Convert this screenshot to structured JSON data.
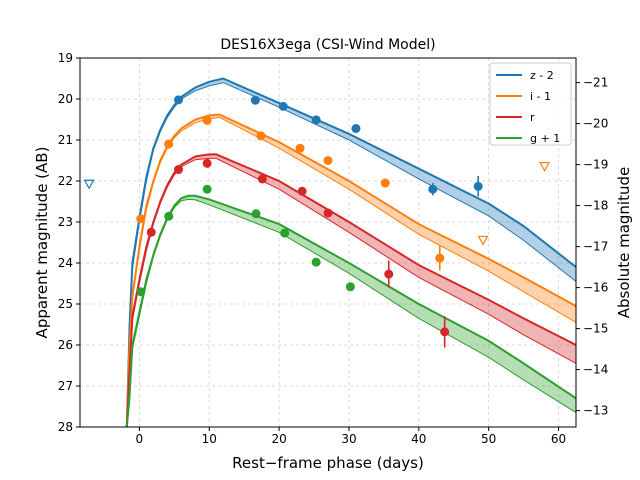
{
  "chart_data": {
    "type": "line",
    "title": "DES16X3ega (CSI-Wind Model)",
    "xlabel": "Rest−frame phase (days)",
    "ylabel": "Apparent magnitude (AB)",
    "ylabel_right": "Absolute magnitude",
    "xlim": [
      -8.5,
      62.5
    ],
    "ylim": [
      28,
      19
    ],
    "ylim_right": [
      -12.6,
      -21.6
    ],
    "x_ticks": [
      0,
      10,
      20,
      30,
      40,
      50,
      60
    ],
    "y_ticks": [
      19,
      20,
      21,
      22,
      23,
      24,
      25,
      26,
      27,
      28
    ],
    "y_ticks_right": [
      -13,
      -14,
      -15,
      -16,
      -17,
      -18,
      -19,
      -20,
      -21
    ],
    "grid": true,
    "legend_position": "top-right",
    "series": [
      {
        "name": "z - 2",
        "color": "#1f77b4",
        "model": {
          "x": [
            -1.8,
            -1.4,
            -1,
            0,
            1,
            2,
            3,
            4,
            5,
            6,
            8,
            10,
            12,
            20,
            30,
            40,
            50,
            55,
            62.5
          ],
          "y": [
            28,
            25.5,
            24.0,
            22.9,
            21.9,
            21.2,
            20.75,
            20.4,
            20.15,
            19.95,
            19.72,
            19.58,
            19.5,
            20.1,
            20.85,
            21.7,
            22.55,
            23.1,
            24.1
          ],
          "y_low": [
            28,
            25.7,
            24.15,
            23.0,
            22.0,
            21.25,
            20.8,
            20.45,
            20.2,
            20.0,
            19.8,
            19.68,
            19.6,
            20.2,
            21.0,
            21.95,
            22.85,
            23.45,
            24.45
          ]
        },
        "points": [
          {
            "x": 5.6,
            "y": 20.02,
            "err": 0.04
          },
          {
            "x": 16.6,
            "y": 20.03,
            "err": 0.04
          },
          {
            "x": 20.6,
            "y": 20.18,
            "err": 0.05
          },
          {
            "x": 25.3,
            "y": 20.51,
            "err": 0.06
          },
          {
            "x": 31.0,
            "y": 20.72,
            "err": 0.07
          },
          {
            "x": 42.0,
            "y": 22.2,
            "err": 0.15
          },
          {
            "x": 48.5,
            "y": 22.13,
            "err": 0.25
          }
        ],
        "upper_limits": [
          {
            "x": -7.2,
            "y": 22.08
          }
        ]
      },
      {
        "name": "i - 1",
        "color": "#ff7f0e",
        "model": {
          "x": [
            -1.8,
            -1.4,
            -1,
            0,
            1,
            2,
            3,
            4,
            5,
            6,
            8,
            10,
            11.5,
            20,
            30,
            40,
            50,
            55,
            62.5
          ],
          "y": [
            28,
            26.0,
            24.8,
            23.6,
            22.6,
            22.0,
            21.5,
            21.15,
            20.9,
            20.72,
            20.5,
            20.4,
            20.38,
            21.05,
            22.0,
            23.05,
            23.9,
            24.35,
            25.05
          ],
          "y_low": [
            28,
            26.2,
            24.9,
            23.7,
            22.7,
            22.05,
            21.55,
            21.2,
            20.95,
            20.78,
            20.58,
            20.48,
            20.45,
            21.2,
            22.2,
            23.3,
            24.2,
            24.7,
            25.45
          ]
        },
        "points": [
          {
            "x": 0.2,
            "y": 22.92,
            "err": 0.05
          },
          {
            "x": 4.2,
            "y": 21.1,
            "err": 0.04
          },
          {
            "x": 9.7,
            "y": 20.52,
            "err": 0.04
          },
          {
            "x": 17.4,
            "y": 20.9,
            "err": 0.04
          },
          {
            "x": 23.0,
            "y": 21.2,
            "err": 0.05
          },
          {
            "x": 27.0,
            "y": 21.5,
            "err": 0.05
          },
          {
            "x": 35.2,
            "y": 22.05,
            "err": 0.07
          },
          {
            "x": 43.0,
            "y": 23.88,
            "err": 0.3
          }
        ],
        "upper_limits": [
          {
            "x": 49.2,
            "y": 23.45
          },
          {
            "x": 58.0,
            "y": 21.65
          }
        ]
      },
      {
        "name": "r",
        "color": "#d62728",
        "model": {
          "x": [
            -1.8,
            -1.4,
            -1,
            0,
            1,
            2,
            3,
            4,
            5,
            6,
            8,
            10,
            11,
            20,
            30,
            40,
            50,
            55,
            62.5
          ],
          "y": [
            28,
            26.6,
            25.3,
            24.4,
            23.6,
            23.0,
            22.5,
            22.1,
            21.8,
            21.6,
            21.4,
            21.35,
            21.35,
            22.0,
            23.0,
            24.05,
            24.9,
            25.35,
            26.0
          ],
          "y_low": [
            28,
            26.8,
            25.4,
            24.5,
            23.7,
            23.05,
            22.55,
            22.15,
            21.85,
            21.65,
            21.48,
            21.45,
            21.45,
            22.2,
            23.25,
            24.35,
            25.25,
            25.75,
            26.45
          ]
        },
        "points": [
          {
            "x": 1.7,
            "y": 23.25,
            "err": 0.05
          },
          {
            "x": 5.6,
            "y": 21.72,
            "err": 0.04
          },
          {
            "x": 9.7,
            "y": 21.57,
            "err": 0.04
          },
          {
            "x": 17.6,
            "y": 21.95,
            "err": 0.05
          },
          {
            "x": 23.3,
            "y": 22.25,
            "err": 0.06
          },
          {
            "x": 27.0,
            "y": 22.78,
            "err": 0.07
          },
          {
            "x": 35.7,
            "y": 24.27,
            "err": 0.33
          },
          {
            "x": 43.7,
            "y": 25.68,
            "err": 0.38
          }
        ],
        "upper_limits": []
      },
      {
        "name": "g + 1",
        "color": "#2ca02c",
        "model": {
          "x": [
            -1.8,
            -1.4,
            -1,
            0,
            1,
            2,
            3,
            4,
            5,
            6,
            7,
            8,
            10,
            20,
            30,
            40,
            50,
            55,
            62.5
          ],
          "y": [
            28,
            27.2,
            26.0,
            25.2,
            24.4,
            23.8,
            23.3,
            22.9,
            22.6,
            22.42,
            22.36,
            22.36,
            22.45,
            23.05,
            24.0,
            25.0,
            25.9,
            26.45,
            27.3
          ],
          "y_low": [
            28,
            27.4,
            26.1,
            25.3,
            24.5,
            23.85,
            23.35,
            22.95,
            22.65,
            22.48,
            22.45,
            22.46,
            22.58,
            23.25,
            24.25,
            25.35,
            26.3,
            26.85,
            27.65
          ]
        },
        "points": [
          {
            "x": 0.2,
            "y": 24.7,
            "err": 0.06
          },
          {
            "x": 4.2,
            "y": 22.86,
            "err": 0.05
          },
          {
            "x": 9.7,
            "y": 22.2,
            "err": 0.04
          },
          {
            "x": 16.7,
            "y": 22.8,
            "err": 0.05
          },
          {
            "x": 20.8,
            "y": 23.27,
            "err": 0.05
          },
          {
            "x": 25.3,
            "y": 23.98,
            "err": 0.06
          },
          {
            "x": 30.2,
            "y": 24.58,
            "err": 0.08
          }
        ],
        "upper_limits": []
      }
    ]
  }
}
